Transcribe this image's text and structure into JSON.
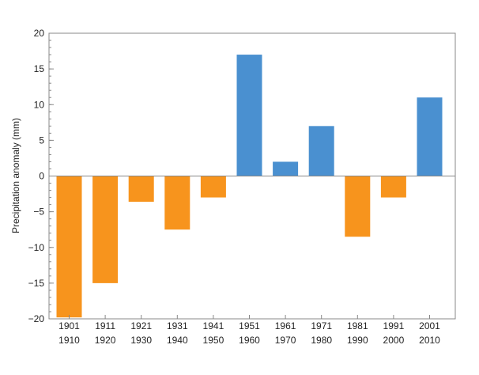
{
  "chart_data": {
    "type": "bar",
    "title": "",
    "xlabel": "",
    "ylabel": "Precipitation anomaly (mm)",
    "ylim": [
      -20,
      20
    ],
    "yticks": [
      20,
      15,
      10,
      5,
      0,
      -5,
      -10,
      -15,
      -20
    ],
    "ytick_labels": [
      "20",
      "15",
      "10",
      "5",
      "0",
      "−5",
      "−10",
      "−15",
      "−20"
    ],
    "y_minor_step": 1,
    "grid": false,
    "categories": [
      [
        "1901",
        "1910"
      ],
      [
        "1911",
        "1920"
      ],
      [
        "1921",
        "1930"
      ],
      [
        "1931",
        "1940"
      ],
      [
        "1941",
        "1950"
      ],
      [
        "1951",
        "1960"
      ],
      [
        "1961",
        "1970"
      ],
      [
        "1971",
        "1980"
      ],
      [
        "1981",
        "1990"
      ],
      [
        "1991",
        "2000"
      ],
      [
        "2001",
        "2010"
      ]
    ],
    "values": [
      -19.8,
      -15,
      -3.6,
      -7.5,
      -3,
      17,
      2,
      7,
      -8.5,
      -3,
      11
    ],
    "colors": {
      "negative": "#F7941D",
      "positive": "#4A90D0",
      "axis": "#888888",
      "text": "#222222"
    }
  }
}
